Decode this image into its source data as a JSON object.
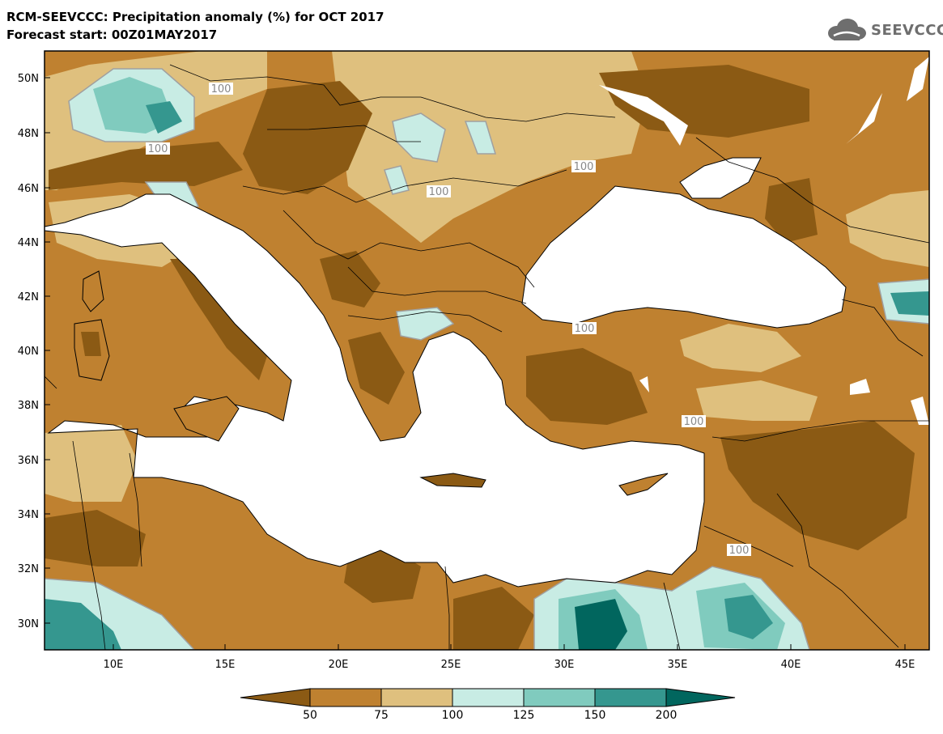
{
  "header": {
    "title_line1": "RCM-SEEVCCC: Precipitation anomaly (%) for OCT 2017",
    "title_line2": "Forecast start: 00Z01MAY2017"
  },
  "logo": {
    "text": "SEEVCCC",
    "icon": "cloud-icon"
  },
  "map": {
    "lat_labels": [
      "50N",
      "48N",
      "46N",
      "44N",
      "42N",
      "40N",
      "38N",
      "36N",
      "34N",
      "32N",
      "30N"
    ],
    "lon_labels": [
      "10E",
      "15E",
      "20E",
      "25E",
      "30E",
      "35E",
      "40E",
      "45E"
    ],
    "contour_labels": [
      "100",
      "100",
      "100",
      "100",
      "100",
      "100",
      "100"
    ]
  },
  "colorbar": {
    "ticks": [
      "50",
      "75",
      "100",
      "125",
      "150",
      "200"
    ],
    "colors": [
      "#8b5a14",
      "#bf8130",
      "#dfc07e",
      "#c8ece4",
      "#80cbbe",
      "#35978f",
      "#01665e"
    ]
  },
  "colors": {
    "dark_brown": "#8b5a14",
    "brown": "#bf8130",
    "tan": "#dfc07e",
    "light_teal": "#c8ece4",
    "teal": "#80cbbe",
    "dark_teal": "#35978f",
    "deep_teal": "#01665e",
    "sea": "#ffffff"
  }
}
